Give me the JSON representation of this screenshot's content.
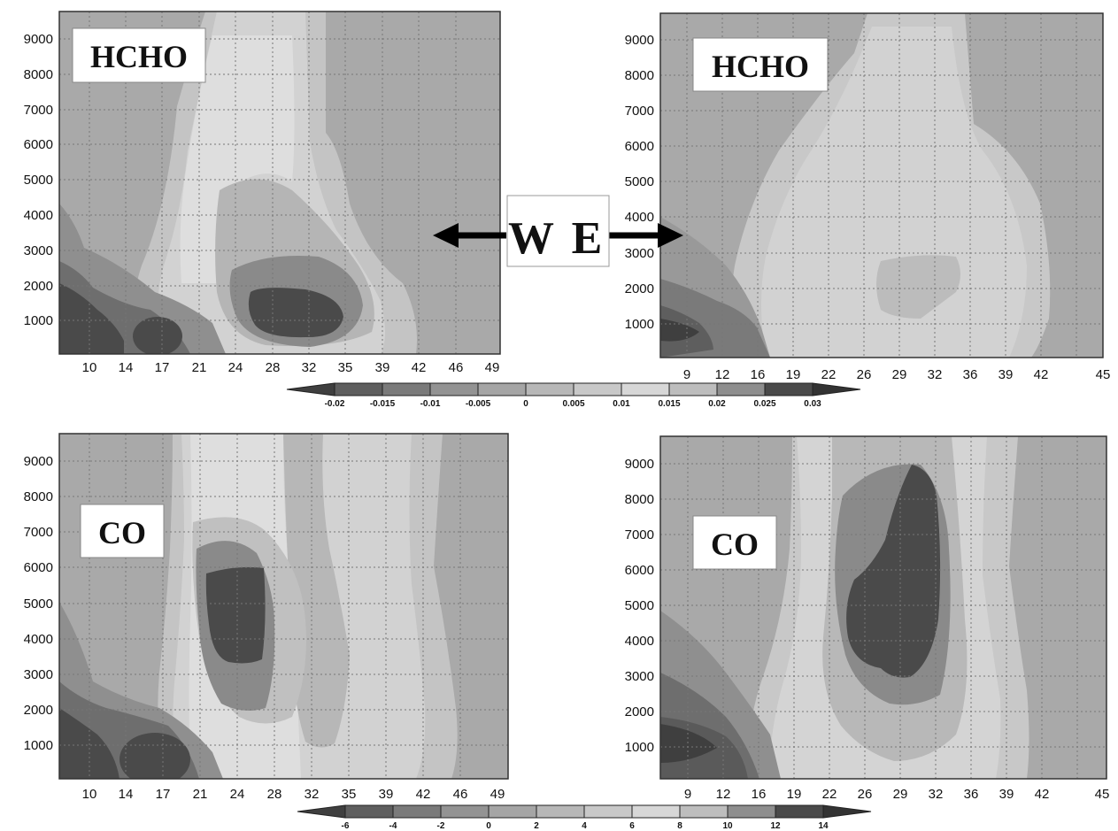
{
  "direction": {
    "west": "W",
    "east": "E"
  },
  "chart_data": [
    {
      "id": "hcho-west",
      "type": "heatmap",
      "label": "HCHO",
      "x_ticks": [
        "10",
        "14",
        "17",
        "21",
        "24",
        "28",
        "32",
        "35",
        "39",
        "42",
        "46",
        "49"
      ],
      "y_ticks": [
        1000,
        2000,
        3000,
        4000,
        5000,
        6000,
        7000,
        8000,
        9000
      ],
      "ylim": [
        0,
        9700
      ],
      "grid": true
    },
    {
      "id": "hcho-east",
      "type": "heatmap",
      "label": "HCHO",
      "x_ticks": [
        "9",
        "12",
        "16",
        "19",
        "22",
        "26",
        "29",
        "32",
        "36",
        "39",
        "42",
        "45"
      ],
      "y_ticks": [
        1000,
        2000,
        3000,
        4000,
        5000,
        6000,
        7000,
        8000,
        9000
      ],
      "ylim": [
        0,
        9700
      ],
      "grid": true
    },
    {
      "id": "co-west",
      "type": "heatmap",
      "label": "CO",
      "x_ticks": [
        "10",
        "14",
        "17",
        "21",
        "24",
        "28",
        "32",
        "35",
        "39",
        "42",
        "46",
        "49"
      ],
      "y_ticks": [
        1000,
        2000,
        3000,
        4000,
        5000,
        6000,
        7000,
        8000,
        9000
      ],
      "ylim": [
        0,
        9700
      ],
      "grid": true
    },
    {
      "id": "co-east",
      "type": "heatmap",
      "label": "CO",
      "x_ticks": [
        "9",
        "12",
        "16",
        "19",
        "22",
        "26",
        "29",
        "32",
        "36",
        "39",
        "42",
        "45"
      ],
      "y_ticks": [
        1000,
        2000,
        3000,
        4000,
        5000,
        6000,
        7000,
        8000,
        9000
      ],
      "ylim": [
        0,
        9700
      ],
      "grid": true
    }
  ],
  "colorbars": {
    "hcho": {
      "labels": [
        "-0.02",
        "-0.015",
        "-0.01",
        "-0.005",
        "0",
        "0.005",
        "0.01",
        "0.015",
        "0.02",
        "0.025",
        "0.03"
      ],
      "colors": [
        "#3f3f3f",
        "#5e5e5e",
        "#7a7a7a",
        "#939393",
        "#a5a5a5",
        "#b7b7b7",
        "#c8c8c8",
        "#d7d7d7",
        "#bdbdbd",
        "#8e8e8e",
        "#4a4a4a",
        "#333333"
      ]
    },
    "co": {
      "labels": [
        "-6",
        "-4",
        "-2",
        "0",
        "2",
        "4",
        "6",
        "8",
        "10",
        "12",
        "14"
      ],
      "colors": [
        "#3f3f3f",
        "#5e5e5e",
        "#7a7a7a",
        "#939393",
        "#a5a5a5",
        "#b7b7b7",
        "#c8c8c8",
        "#d7d7d7",
        "#bdbdbd",
        "#8e8e8e",
        "#4a4a4a",
        "#333333"
      ]
    }
  },
  "palette": {
    "background": "#a9a9a9",
    "very_dark": "#4a4a4a",
    "dark": "#6e6e6e",
    "mid_dark": "#8a8a8a",
    "light": "#c4c4c4",
    "lighter": "#d2d2d2",
    "lightest": "#dedede"
  }
}
